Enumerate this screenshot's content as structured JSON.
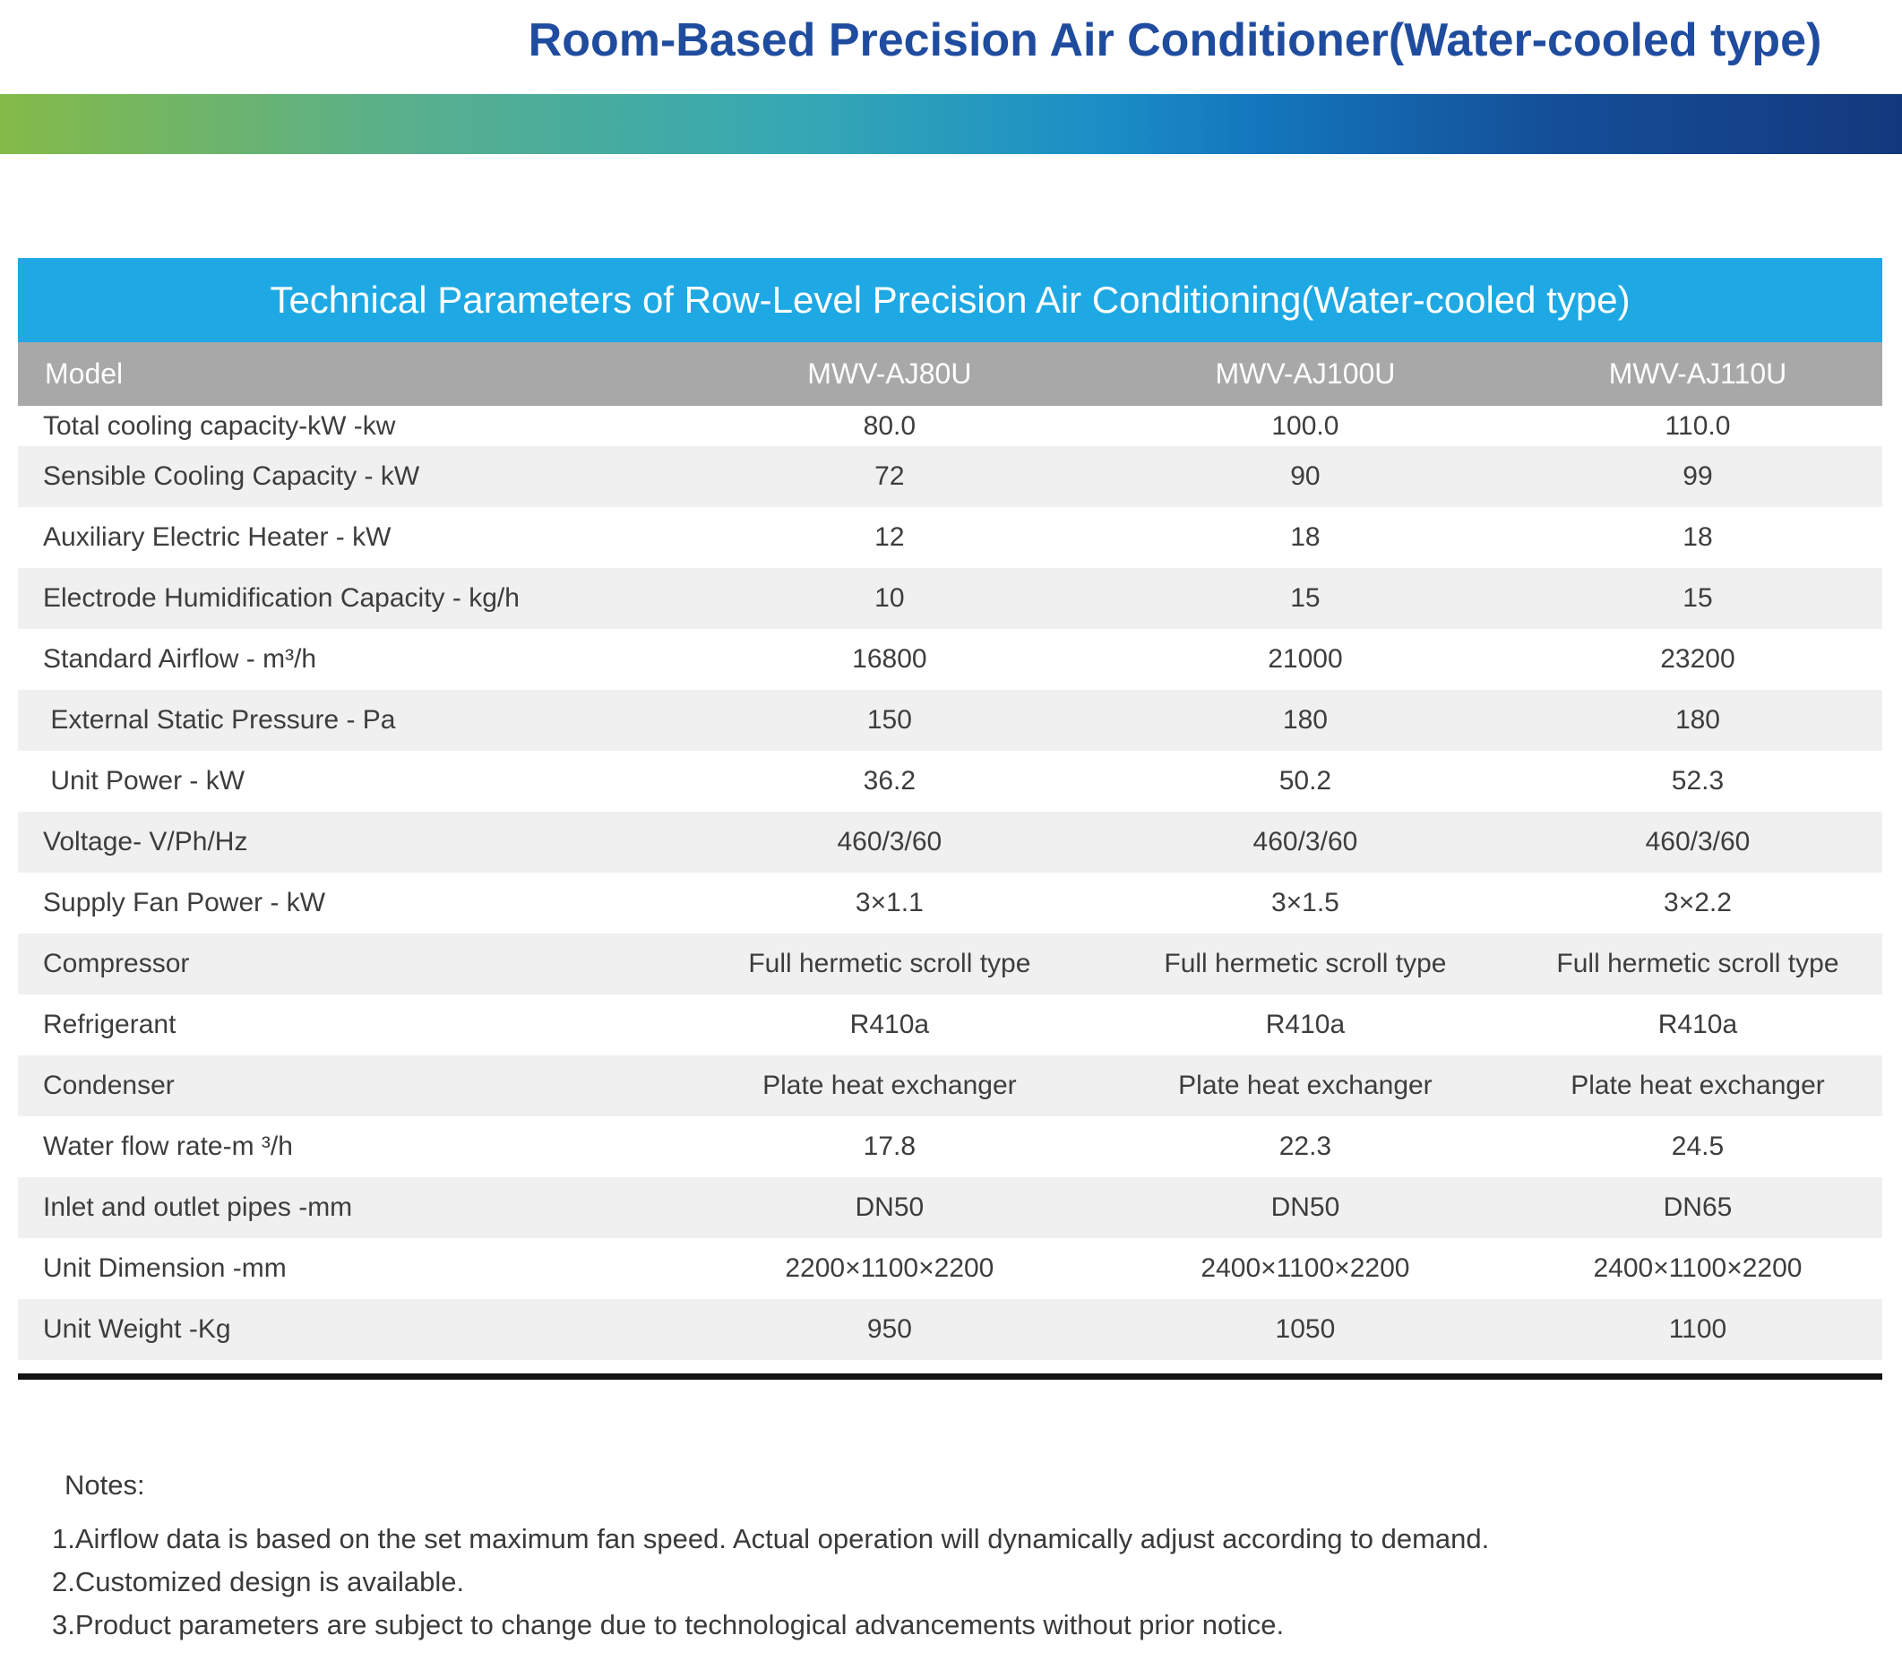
{
  "page": {
    "title": "Room-Based Precision Air Conditioner(Water-cooled type)"
  },
  "table": {
    "title": "Technical Parameters of Row-Level Precision Air Conditioning(Water-cooled type)",
    "header": {
      "label": "Model",
      "columns": [
        "MWV-AJ80U",
        "MWV-AJ100U",
        "MWV-AJ110U"
      ]
    },
    "rows": [
      {
        "label": "Total cooling capacity-kW -kw",
        "values": [
          "80.0",
          "100.0",
          "110.0"
        ]
      },
      {
        "label": "Sensible Cooling Capacity - kW",
        "values": [
          "72",
          "90",
          "99"
        ]
      },
      {
        "label": "Auxiliary Electric Heater - kW",
        "values": [
          "12",
          "18",
          "18"
        ]
      },
      {
        "label": "Electrode Humidification Capacity - kg/h",
        "values": [
          "10",
          "15",
          "15"
        ]
      },
      {
        "label": "Standard Airflow - m³/h",
        "values": [
          "16800",
          "21000",
          "23200"
        ]
      },
      {
        "label": " External Static Pressure - Pa",
        "values": [
          "150",
          "180",
          "180"
        ]
      },
      {
        "label": " Unit Power - kW",
        "values": [
          "36.2",
          "50.2",
          "52.3"
        ]
      },
      {
        "label": "Voltage- V/Ph/Hz",
        "values": [
          "460/3/60",
          "460/3/60",
          "460/3/60"
        ]
      },
      {
        "label": "Supply Fan Power - kW",
        "values": [
          "3×1.1",
          "3×1.5",
          "3×2.2"
        ]
      },
      {
        "label": "Compressor",
        "values": [
          "Full hermetic scroll type",
          "Full hermetic scroll type",
          "Full hermetic scroll type"
        ]
      },
      {
        "label": "Refrigerant",
        "values": [
          "R410a",
          "R410a",
          "R410a"
        ]
      },
      {
        "label": "Condenser",
        "values": [
          "Plate heat exchanger",
          "Plate heat exchanger",
          "Plate heat exchanger"
        ]
      },
      {
        "label": "Water flow rate-m ³/h",
        "values": [
          "17.8",
          "22.3",
          "24.5"
        ]
      },
      {
        "label": "Inlet and outlet pipes -mm",
        "values": [
          "DN50",
          "DN50",
          "DN65"
        ]
      },
      {
        "label": "Unit Dimension -mm",
        "values": [
          "2200×1100×2200",
          "2400×1100×2200",
          "2400×1100×2200"
        ]
      },
      {
        "label": "Unit Weight -Kg",
        "values": [
          "950",
          "1050",
          "1100"
        ]
      }
    ]
  },
  "notes": {
    "heading": "Notes:",
    "items": [
      "1.Airflow data is based on the set maximum fan speed. Actual operation will dynamically adjust according to demand.",
      "2.Customized design is available.",
      "3.Product parameters are subject to change due to technological advancements without prior notice."
    ]
  },
  "colors": {
    "page-title-blue": "#1F4C9E",
    "band-blue": "#1EA9E4",
    "model-gray": "#A8A8A8",
    "zebra-gray": "#F0F0F0",
    "text-dark": "#3D3D3D",
    "gradient-green": "#84BA47",
    "gradient-teal": "#35A8B4",
    "gradient-blue": "#1377BD",
    "gradient-navy": "#14387E"
  }
}
